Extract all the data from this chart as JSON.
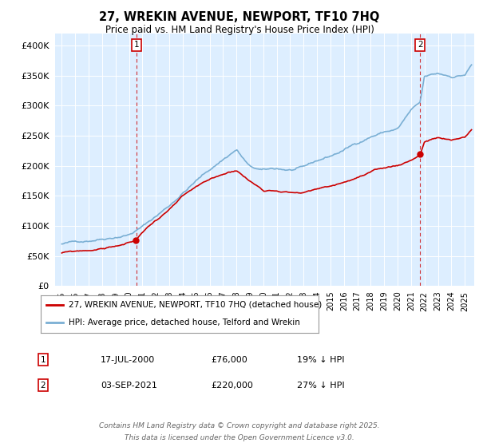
{
  "title": "27, WREKIN AVENUE, NEWPORT, TF10 7HQ",
  "subtitle": "Price paid vs. HM Land Registry's House Price Index (HPI)",
  "annotation1": {
    "label": "1",
    "date": "17-JUL-2000",
    "price": "£76,000",
    "note": "19% ↓ HPI",
    "year": 2000.54
  },
  "annotation2": {
    "label": "2",
    "date": "03-SEP-2021",
    "price": "£220,000",
    "note": "27% ↓ HPI",
    "year": 2021.67
  },
  "property_color": "#cc0000",
  "hpi_color": "#7aafd4",
  "annotation_box_color": "#cc0000",
  "plot_bg_color": "#ddeeff",
  "background_color": "#ffffff",
  "grid_color": "#ffffff",
  "ylim": [
    0,
    420000
  ],
  "yticks": [
    0,
    50000,
    100000,
    150000,
    200000,
    250000,
    300000,
    350000,
    400000
  ],
  "footer_line1": "Contains HM Land Registry data © Crown copyright and database right 2025.",
  "footer_line2": "This data is licensed under the Open Government Licence v3.0.",
  "legend_label1": "27, WREKIN AVENUE, NEWPORT, TF10 7HQ (detached house)",
  "legend_label2": "HPI: Average price, detached house, Telford and Wrekin",
  "xlim_start": 1994.5,
  "xlim_end": 2025.7
}
